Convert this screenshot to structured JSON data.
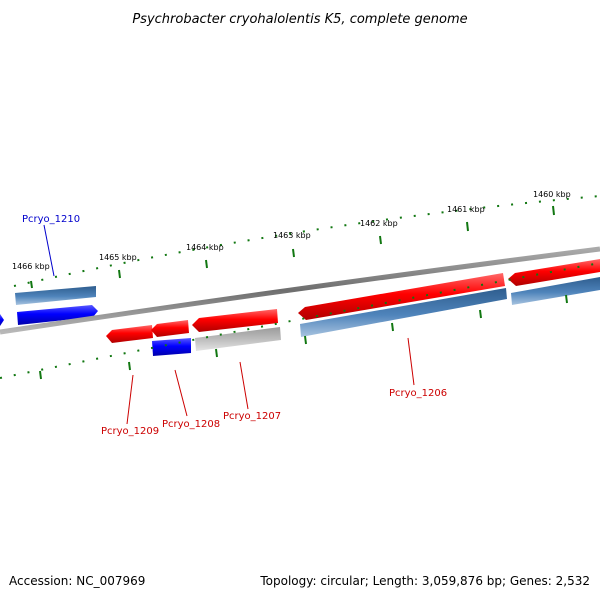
{
  "title": "Psychrobacter cryohalolentis K5, complete genome",
  "scale_labels": [
    "1466 kbp",
    "1465 kbp",
    "1464 kbp",
    "1463 kbp",
    "1462 kbp",
    "1461 kbp",
    "1460 kbp"
  ],
  "genes": [
    {
      "id": "Pcryo_1210",
      "strand": "forward",
      "color": "#0000ee"
    },
    {
      "id": "Pcryo_1209",
      "strand": "reverse",
      "color": "#dd0000"
    },
    {
      "id": "Pcryo_1208",
      "strand": "reverse",
      "color": "#dd0000"
    },
    {
      "id": "Pcryo_1207",
      "strand": "reverse",
      "color": "#dd0000"
    },
    {
      "id": "Pcryo_1206",
      "strand": "reverse",
      "color": "#dd0000"
    }
  ],
  "colors": {
    "forward_cds": "#0000ff",
    "reverse_cds": "#ff0000",
    "gene_feature": "#4a7fb5",
    "other_feature": "#bbbbbb",
    "backbone": "#888888",
    "ticks": "#117711",
    "forward_label": "#0000cc",
    "reverse_label": "#cc0000"
  },
  "footer": {
    "accession": "Accession: NC_007969",
    "topology": "Topology: circular; Length: 3,059,876 bp; Genes: 2,532"
  }
}
